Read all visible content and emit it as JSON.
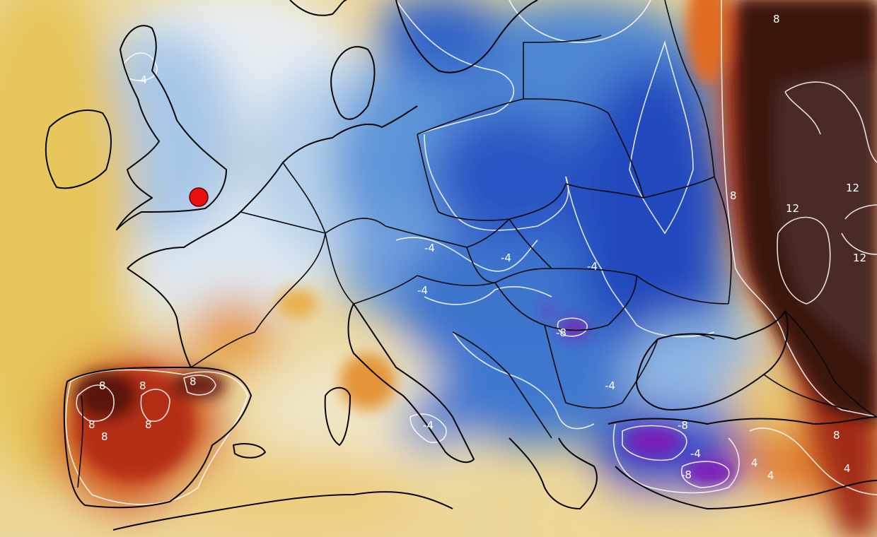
{
  "map": {
    "type": "temperature-anomaly",
    "colors": {
      "warm_light": "#e9cf7a",
      "warm_mid": "#e48a2c",
      "warm_hot": "#b8321a",
      "warm_extreme": "#3a1512",
      "neutral": "#eef3f6",
      "cold_light": "#a9c9e6",
      "cold_mid": "#4f8fd6",
      "cold_deep": "#1b47b8",
      "cold_extreme": "#6a1fa8",
      "marker": "#e81010",
      "contour": "#ffffff",
      "borders": "#000000"
    },
    "marker": {
      "name": "location-marker",
      "color": "#e81010"
    },
    "contour_labels": [
      {
        "text": "-4",
        "area": "northern-britain"
      },
      {
        "text": "-4",
        "area": "alps"
      },
      {
        "text": "-4",
        "area": "alps"
      },
      {
        "text": "-4",
        "area": "hungary"
      },
      {
        "text": "-4",
        "area": "ukraine"
      },
      {
        "text": "-4",
        "area": "adriatic"
      },
      {
        "text": "-4",
        "area": "balkans"
      },
      {
        "text": "-4",
        "area": "turkey"
      },
      {
        "text": "-8",
        "area": "romania"
      },
      {
        "text": "-8",
        "area": "turkey"
      },
      {
        "text": "-8",
        "area": "turkey"
      },
      {
        "text": "8",
        "area": "spain"
      },
      {
        "text": "8",
        "area": "spain"
      },
      {
        "text": "8",
        "area": "spain"
      },
      {
        "text": "8",
        "area": "spain"
      },
      {
        "text": "8",
        "area": "spain"
      },
      {
        "text": "8",
        "area": "spain"
      },
      {
        "text": "8",
        "area": "russia-north"
      },
      {
        "text": "8",
        "area": "russia"
      },
      {
        "text": "8",
        "area": "middle-east"
      },
      {
        "text": "4",
        "area": "middle-east"
      },
      {
        "text": "4",
        "area": "middle-east"
      },
      {
        "text": "4",
        "area": "middle-east"
      },
      {
        "text": "12",
        "area": "russia"
      },
      {
        "text": "12",
        "area": "russia"
      },
      {
        "text": "12",
        "area": "russia"
      }
    ]
  }
}
